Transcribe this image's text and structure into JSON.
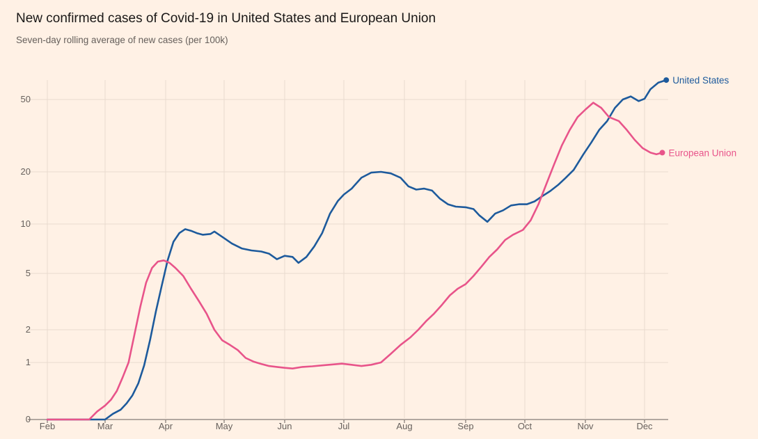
{
  "chart_data": {
    "type": "line",
    "title": "New confirmed cases of Covid-19 in United States and European Union",
    "subtitle": "Seven-day rolling average of new cases (per 100k)",
    "xlabel": "",
    "ylabel": "",
    "y_scale": "log-like (zero at baseline)",
    "y_ticks": [
      {
        "value": 0,
        "label": "0"
      },
      {
        "value": 1,
        "label": "1"
      },
      {
        "value": 2,
        "label": "2"
      },
      {
        "value": 5,
        "label": "5"
      },
      {
        "value": 10,
        "label": "10"
      },
      {
        "value": 20,
        "label": "20"
      },
      {
        "value": 50,
        "label": "50"
      }
    ],
    "x_ticks": [
      {
        "date": "2020-02-01",
        "label": "Feb"
      },
      {
        "date": "2020-03-01",
        "label": "Mar"
      },
      {
        "date": "2020-04-01",
        "label": "Apr"
      },
      {
        "date": "2020-05-01",
        "label": "May"
      },
      {
        "date": "2020-06-01",
        "label": "Jun"
      },
      {
        "date": "2020-07-01",
        "label": "Jul"
      },
      {
        "date": "2020-08-01",
        "label": "Aug"
      },
      {
        "date": "2020-09-01",
        "label": "Sep"
      },
      {
        "date": "2020-10-01",
        "label": "Oct"
      },
      {
        "date": "2020-11-01",
        "label": "Nov"
      },
      {
        "date": "2020-12-01",
        "label": "Dec"
      }
    ],
    "grid": true,
    "series": [
      {
        "name": "United States",
        "color": "#1d5a9c",
        "points": [
          [
            "2020-02-01",
            0
          ],
          [
            "2020-02-15",
            0
          ],
          [
            "2020-03-01",
            0
          ],
          [
            "2020-03-05",
            0.01
          ],
          [
            "2020-03-09",
            0.03
          ],
          [
            "2020-03-12",
            0.08
          ],
          [
            "2020-03-15",
            0.18
          ],
          [
            "2020-03-18",
            0.4
          ],
          [
            "2020-03-21",
            0.9
          ],
          [
            "2020-03-24",
            1.6
          ],
          [
            "2020-03-27",
            2.7
          ],
          [
            "2020-03-30",
            4.1
          ],
          [
            "2020-04-02",
            6.0
          ],
          [
            "2020-04-05",
            7.8
          ],
          [
            "2020-04-08",
            8.8
          ],
          [
            "2020-04-11",
            9.3
          ],
          [
            "2020-04-14",
            9.1
          ],
          [
            "2020-04-17",
            8.8
          ],
          [
            "2020-04-20",
            8.6
          ],
          [
            "2020-04-24",
            8.7
          ],
          [
            "2020-04-26",
            9.0
          ],
          [
            "2020-05-01",
            8.2
          ],
          [
            "2020-05-05",
            7.6
          ],
          [
            "2020-05-10",
            7.1
          ],
          [
            "2020-05-15",
            6.9
          ],
          [
            "2020-05-20",
            6.8
          ],
          [
            "2020-05-24",
            6.6
          ],
          [
            "2020-05-28",
            6.1
          ],
          [
            "2020-06-01",
            6.4
          ],
          [
            "2020-06-05",
            6.3
          ],
          [
            "2020-06-08",
            5.8
          ],
          [
            "2020-06-12",
            6.3
          ],
          [
            "2020-06-16",
            7.3
          ],
          [
            "2020-06-20",
            8.8
          ],
          [
            "2020-06-24",
            11.5
          ],
          [
            "2020-06-28",
            13.6
          ],
          [
            "2020-07-01",
            14.8
          ],
          [
            "2020-07-05",
            16.0
          ],
          [
            "2020-07-10",
            18.5
          ],
          [
            "2020-07-15",
            19.8
          ],
          [
            "2020-07-20",
            20.0
          ],
          [
            "2020-07-25",
            19.6
          ],
          [
            "2020-07-30",
            18.5
          ],
          [
            "2020-08-03",
            16.5
          ],
          [
            "2020-08-07",
            15.8
          ],
          [
            "2020-08-11",
            16.0
          ],
          [
            "2020-08-15",
            15.6
          ],
          [
            "2020-08-19",
            14.0
          ],
          [
            "2020-08-23",
            13.0
          ],
          [
            "2020-08-27",
            12.6
          ],
          [
            "2020-09-01",
            12.5
          ],
          [
            "2020-09-05",
            12.2
          ],
          [
            "2020-09-08",
            11.2
          ],
          [
            "2020-09-12",
            10.3
          ],
          [
            "2020-09-16",
            11.5
          ],
          [
            "2020-09-20",
            12.0
          ],
          [
            "2020-09-24",
            12.8
          ],
          [
            "2020-09-28",
            13.0
          ],
          [
            "2020-10-02",
            13.0
          ],
          [
            "2020-10-06",
            13.5
          ],
          [
            "2020-10-10",
            14.5
          ],
          [
            "2020-10-14",
            15.5
          ],
          [
            "2020-10-18",
            16.8
          ],
          [
            "2020-10-22",
            18.5
          ],
          [
            "2020-10-26",
            20.5
          ],
          [
            "2020-10-31",
            25.0
          ],
          [
            "2020-11-04",
            29.0
          ],
          [
            "2020-11-08",
            34.0
          ],
          [
            "2020-11-12",
            38.0
          ],
          [
            "2020-11-16",
            45.0
          ],
          [
            "2020-11-20",
            50.0
          ],
          [
            "2020-11-24",
            52.0
          ],
          [
            "2020-11-28",
            49.0
          ],
          [
            "2020-12-01",
            50.5
          ],
          [
            "2020-12-04",
            57.0
          ],
          [
            "2020-12-08",
            62.0
          ],
          [
            "2020-12-12",
            64.0
          ]
        ]
      },
      {
        "name": "European Union",
        "color": "#e8548a",
        "points": [
          [
            "2020-02-01",
            0
          ],
          [
            "2020-02-15",
            0
          ],
          [
            "2020-02-22",
            0.0
          ],
          [
            "2020-02-26",
            0.02
          ],
          [
            "2020-03-01",
            0.06
          ],
          [
            "2020-03-04",
            0.12
          ],
          [
            "2020-03-07",
            0.25
          ],
          [
            "2020-03-10",
            0.55
          ],
          [
            "2020-03-13",
            1.0
          ],
          [
            "2020-03-16",
            1.8
          ],
          [
            "2020-03-19",
            2.9
          ],
          [
            "2020-03-22",
            4.3
          ],
          [
            "2020-03-25",
            5.4
          ],
          [
            "2020-03-28",
            5.9
          ],
          [
            "2020-03-31",
            6.0
          ],
          [
            "2020-04-03",
            5.8
          ],
          [
            "2020-04-06",
            5.4
          ],
          [
            "2020-04-10",
            4.8
          ],
          [
            "2020-04-14",
            3.9
          ],
          [
            "2020-04-18",
            3.2
          ],
          [
            "2020-04-22",
            2.6
          ],
          [
            "2020-04-26",
            2.0
          ],
          [
            "2020-04-30",
            1.6
          ],
          [
            "2020-05-04",
            1.45
          ],
          [
            "2020-05-08",
            1.3
          ],
          [
            "2020-05-12",
            1.1
          ],
          [
            "2020-05-16",
            1.02
          ],
          [
            "2020-05-20",
            0.95
          ],
          [
            "2020-05-24",
            0.88
          ],
          [
            "2020-05-28",
            0.85
          ],
          [
            "2020-06-01",
            0.82
          ],
          [
            "2020-06-05",
            0.8
          ],
          [
            "2020-06-10",
            0.85
          ],
          [
            "2020-06-15",
            0.87
          ],
          [
            "2020-06-20",
            0.9
          ],
          [
            "2020-06-25",
            0.93
          ],
          [
            "2020-06-30",
            0.96
          ],
          [
            "2020-07-05",
            0.92
          ],
          [
            "2020-07-10",
            0.88
          ],
          [
            "2020-07-15",
            0.92
          ],
          [
            "2020-07-20",
            1.0
          ],
          [
            "2020-07-25",
            1.2
          ],
          [
            "2020-07-30",
            1.45
          ],
          [
            "2020-08-04",
            1.7
          ],
          [
            "2020-08-08",
            2.0
          ],
          [
            "2020-08-12",
            2.3
          ],
          [
            "2020-08-16",
            2.6
          ],
          [
            "2020-08-20",
            3.0
          ],
          [
            "2020-08-24",
            3.5
          ],
          [
            "2020-08-28",
            3.9
          ],
          [
            "2020-09-01",
            4.2
          ],
          [
            "2020-09-05",
            4.8
          ],
          [
            "2020-09-09",
            5.5
          ],
          [
            "2020-09-13",
            6.3
          ],
          [
            "2020-09-17",
            7.0
          ],
          [
            "2020-09-21",
            8.0
          ],
          [
            "2020-09-25",
            8.6
          ],
          [
            "2020-09-30",
            9.2
          ],
          [
            "2020-10-04",
            10.5
          ],
          [
            "2020-10-08",
            13.0
          ],
          [
            "2020-10-12",
            17.0
          ],
          [
            "2020-10-16",
            22.0
          ],
          [
            "2020-10-20",
            28.0
          ],
          [
            "2020-10-24",
            34.0
          ],
          [
            "2020-10-28",
            40.0
          ],
          [
            "2020-11-01",
            44.0
          ],
          [
            "2020-11-05",
            48.0
          ],
          [
            "2020-11-09",
            45.0
          ],
          [
            "2020-11-13",
            40.0
          ],
          [
            "2020-11-18",
            38.0
          ],
          [
            "2020-11-22",
            34.0
          ],
          [
            "2020-11-26",
            30.0
          ],
          [
            "2020-11-30",
            27.0
          ],
          [
            "2020-12-04",
            25.5
          ],
          [
            "2020-12-07",
            25.0
          ],
          [
            "2020-12-10",
            25.5
          ]
        ]
      }
    ]
  }
}
